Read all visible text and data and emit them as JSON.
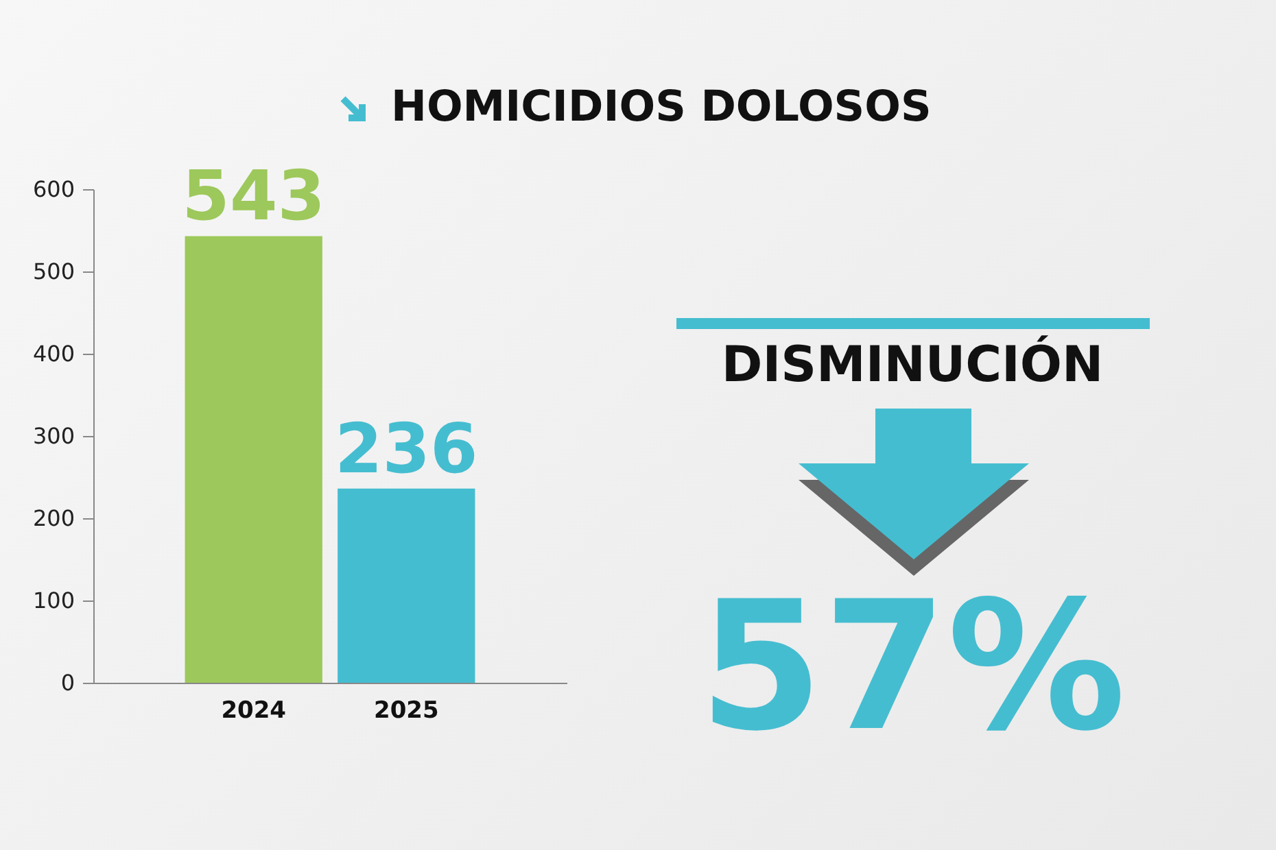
{
  "chart_data": {
    "type": "bar",
    "title": "HOMICIDIOS DOLOSOS",
    "categories": [
      "2024",
      "2025"
    ],
    "values": [
      543,
      236
    ],
    "colors": [
      "#9dc85b",
      "#45bdd0"
    ],
    "ylim": [
      0,
      600
    ],
    "yticks": [
      0,
      100,
      200,
      300,
      400,
      500,
      600
    ],
    "data_labels": true,
    "annotations": [
      "DISMINUCIÓN",
      "57%"
    ]
  }
}
